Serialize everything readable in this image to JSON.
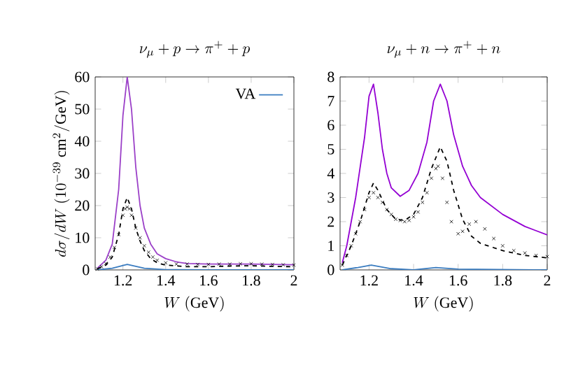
{
  "chart_data": [
    {
      "type": "line",
      "title": "\\nu_\\mu + p \\rightarrow \\pi^+ + p",
      "xlabel": "W\\ (\\mathrm{GeV})",
      "ylabel": "d\\sigma/dW\\ (10^{-39}\\ \\mathrm{cm}^2/\\mathrm{GeV})",
      "xlim": [
        1.07,
        2
      ],
      "ylim": [
        0,
        60
      ],
      "xticks": [
        1.2,
        1.4,
        1.6,
        1.8,
        2
      ],
      "yticks": [
        0,
        10,
        20,
        30,
        40,
        50,
        60
      ],
      "legend": "top right",
      "series": [
        {
          "color": "#9b40c8",
          "x": [
            1.08,
            1.12,
            1.15,
            1.18,
            1.2,
            1.22,
            1.24,
            1.26,
            1.28,
            1.3,
            1.33,
            1.36,
            1.4,
            1.45,
            1.5,
            1.6,
            1.7,
            1.8,
            1.9,
            2
          ],
          "values": [
            0.5,
            3,
            8,
            25,
            48,
            60,
            50,
            32,
            20,
            13,
            8,
            5,
            3.5,
            2.5,
            2,
            1.8,
            1.8,
            1.8,
            1.7,
            1.6
          ]
        },
        {
          "color": "#000000",
          "line_style": "dashed",
          "x": [
            1.08,
            1.12,
            1.15,
            1.18,
            1.2,
            1.22,
            1.24,
            1.26,
            1.28,
            1.3,
            1.33,
            1.36,
            1.4,
            1.5,
            1.6,
            1.7,
            1.8,
            1.9,
            2
          ],
          "values": [
            0.3,
            1.5,
            4,
            11,
            19,
            22.5,
            19,
            13,
            9,
            6,
            3.5,
            2.2,
            1.5,
            1,
            1,
            1.2,
            1.3,
            1.1,
            1
          ]
        },
        {
          "type": "scatter",
          "marker": "cross",
          "color": "#000000",
          "x": [
            1.08,
            1.1,
            1.12,
            1.14,
            1.16,
            1.18,
            1.2,
            1.21,
            1.22,
            1.23,
            1.24,
            1.26,
            1.28,
            1.3,
            1.32,
            1.34,
            1.36,
            1.4,
            1.45,
            1.5,
            1.55,
            1.6,
            1.65,
            1.7,
            1.75,
            1.8,
            1.85,
            1.9,
            1.95,
            2
          ],
          "values": [
            0.3,
            1,
            2,
            4,
            7,
            11,
            17,
            19,
            19.5,
            19,
            17,
            13,
            10,
            7.5,
            5.5,
            4,
            3,
            2.2,
            1.8,
            1.8,
            1.7,
            1.7,
            1.8,
            1.8,
            1.9,
            1.9,
            1.8,
            1.7,
            1.6,
            1.5
          ]
        },
        {
          "name": "VA",
          "color": "#3a7cc0",
          "x": [
            1.08,
            1.15,
            1.22,
            1.3,
            1.4,
            1.6,
            2
          ],
          "values": [
            0,
            0.5,
            1.7,
            0.5,
            0.1,
            0,
            0
          ]
        }
      ]
    },
    {
      "type": "line",
      "title": "\\nu_\\mu + n \\rightarrow \\pi^+ + n",
      "xlabel": "W\\ (\\mathrm{GeV})",
      "xlim": [
        1.07,
        2
      ],
      "ylim": [
        0,
        8
      ],
      "xticks": [
        1.2,
        1.4,
        1.6,
        1.8,
        2
      ],
      "yticks": [
        0,
        1,
        2,
        3,
        4,
        5,
        6,
        7,
        8
      ],
      "series": [
        {
          "color": "#9400d3",
          "x": [
            1.08,
            1.1,
            1.14,
            1.18,
            1.2,
            1.22,
            1.24,
            1.26,
            1.28,
            1.3,
            1.34,
            1.38,
            1.42,
            1.46,
            1.49,
            1.52,
            1.55,
            1.58,
            1.62,
            1.66,
            1.7,
            1.8,
            1.9,
            2
          ],
          "values": [
            0.3,
            1,
            3,
            5.5,
            7.2,
            7.7,
            6.5,
            5,
            4,
            3.4,
            3.05,
            3.3,
            4,
            5.3,
            7,
            7.7,
            7,
            5.6,
            4.3,
            3.5,
            3,
            2.3,
            1.8,
            1.45
          ]
        },
        {
          "color": "#000000",
          "line_style": "dashed",
          "x": [
            1.08,
            1.12,
            1.16,
            1.2,
            1.22,
            1.24,
            1.28,
            1.32,
            1.36,
            1.4,
            1.44,
            1.48,
            1.52,
            1.55,
            1.58,
            1.62,
            1.66,
            1.7,
            1.8,
            1.9,
            2
          ],
          "values": [
            0.2,
            1,
            2,
            3.2,
            3.6,
            3.3,
            2.5,
            2.1,
            2.05,
            2.3,
            3,
            4.2,
            5.1,
            4.5,
            3.3,
            2.1,
            1.4,
            1.1,
            0.8,
            0.6,
            0.5
          ]
        },
        {
          "type": "scatter",
          "marker": "cross",
          "color": "#000000",
          "x": [
            1.08,
            1.1,
            1.12,
            1.14,
            1.16,
            1.18,
            1.2,
            1.22,
            1.24,
            1.26,
            1.28,
            1.3,
            1.32,
            1.34,
            1.36,
            1.38,
            1.4,
            1.42,
            1.44,
            1.46,
            1.48,
            1.5,
            1.51,
            1.53,
            1.55,
            1.57,
            1.6,
            1.62,
            1.65,
            1.68,
            1.72,
            1.76,
            1.8,
            1.85,
            1.9,
            1.95,
            2
          ],
          "values": [
            0.2,
            0.6,
            1,
            1.5,
            2,
            2.5,
            3,
            3.2,
            3,
            2.8,
            2.5,
            2.3,
            2.1,
            2.05,
            2,
            2.05,
            2.2,
            2.4,
            2.8,
            3.2,
            3.8,
            4.2,
            4.3,
            3.8,
            2.8,
            2,
            1.5,
            1.6,
            1.9,
            2,
            1.7,
            1.3,
            1,
            0.8,
            0.7,
            0.6,
            0.55
          ]
        },
        {
          "color": "#3a7cc0",
          "x": [
            1.08,
            1.15,
            1.21,
            1.3,
            1.4,
            1.5,
            1.6,
            2
          ],
          "values": [
            0,
            0.1,
            0.2,
            0.05,
            0,
            0.1,
            0.03,
            0
          ]
        }
      ]
    }
  ]
}
